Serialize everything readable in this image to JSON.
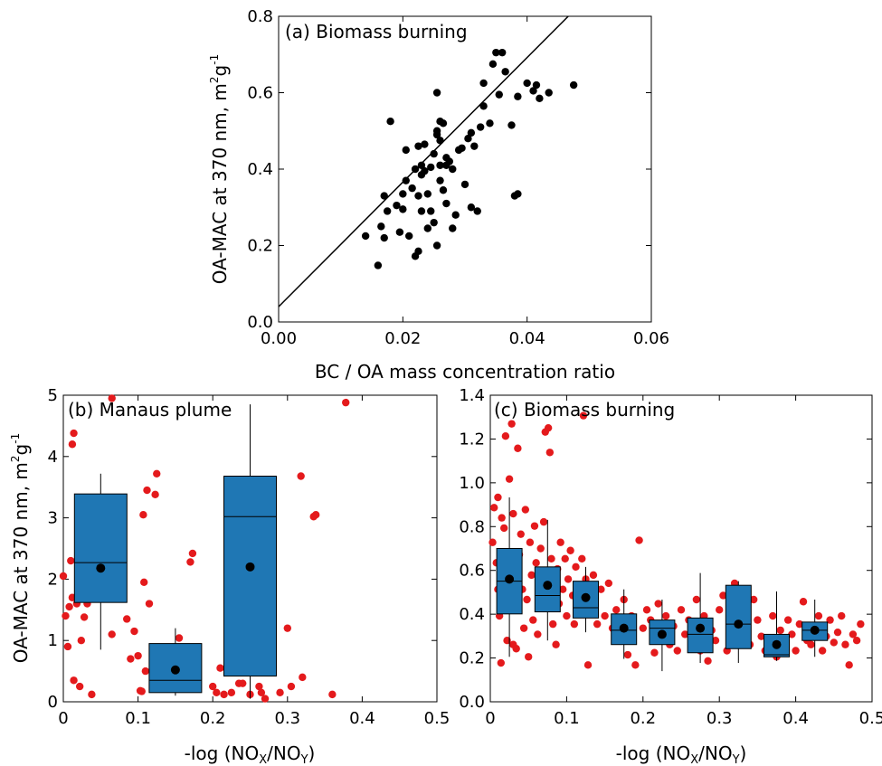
{
  "figure": {
    "panel_a": {
      "title": "(a) Biomass burning",
      "ylabel_main": "OA-MAC at 370 nm, m",
      "ylabel_sup1": "2",
      "ylabel_mid": "g",
      "ylabel_sup2": "-1",
      "xlabel": "BC / OA mass concentration ratio"
    },
    "panel_b": {
      "title": "(b) Manaus plume",
      "ylabel_main": "OA-MAC at 370 nm, m",
      "ylabel_sup1": "2",
      "ylabel_mid": "g",
      "ylabel_sup2": "-1",
      "xlabel_pre": "-log (NO",
      "xlabel_sub1": "X",
      "xlabel_mid": "/NO",
      "xlabel_sub2": "Y",
      "xlabel_post": ")"
    },
    "panel_c": {
      "title": "(c) Biomass burning",
      "xlabel_pre": "-log (NO",
      "xlabel_sub1": "X",
      "xlabel_mid": "/NO",
      "xlabel_sub2": "Y",
      "xlabel_post": ")"
    }
  },
  "colors": {
    "scatter_a": "#000000",
    "red_points": "#e41a1c",
    "box_fill": "#1f77b4",
    "mean_marker": "#000000"
  },
  "chart_data": [
    {
      "type": "scatter",
      "panel": "a",
      "title": "(a) Biomass burning",
      "xlabel": "BC / OA mass concentration ratio",
      "ylabel": "OA-MAC at 370 nm, m2g-1",
      "xlim": [
        0.0,
        0.06
      ],
      "ylim": [
        0.0,
        0.8
      ],
      "xticks": [
        "0.00",
        "0.02",
        "0.04",
        "0.06"
      ],
      "yticks": [
        "0.0",
        "0.2",
        "0.4",
        "0.6",
        "0.8"
      ],
      "fit_line": {
        "intercept": 0.04,
        "slope": 16.3
      },
      "points": [
        [
          0.014,
          0.225
        ],
        [
          0.016,
          0.148
        ],
        [
          0.0165,
          0.25
        ],
        [
          0.017,
          0.22
        ],
        [
          0.017,
          0.33
        ],
        [
          0.0175,
          0.29
        ],
        [
          0.018,
          0.525
        ],
        [
          0.019,
          0.305
        ],
        [
          0.0195,
          0.235
        ],
        [
          0.02,
          0.335
        ],
        [
          0.02,
          0.295
        ],
        [
          0.0205,
          0.37
        ],
        [
          0.0205,
          0.45
        ],
        [
          0.021,
          0.225
        ],
        [
          0.0215,
          0.35
        ],
        [
          0.022,
          0.172
        ],
        [
          0.022,
          0.4
        ],
        [
          0.0225,
          0.185
        ],
        [
          0.0225,
          0.33
        ],
        [
          0.0225,
          0.46
        ],
        [
          0.023,
          0.385
        ],
        [
          0.023,
          0.41
        ],
        [
          0.023,
          0.29
        ],
        [
          0.0235,
          0.465
        ],
        [
          0.0235,
          0.395
        ],
        [
          0.024,
          0.335
        ],
        [
          0.024,
          0.245
        ],
        [
          0.0245,
          0.29
        ],
        [
          0.0245,
          0.405
        ],
        [
          0.025,
          0.44
        ],
        [
          0.025,
          0.26
        ],
        [
          0.0255,
          0.2
        ],
        [
          0.0255,
          0.6
        ],
        [
          0.0255,
          0.5
        ],
        [
          0.0255,
          0.49
        ],
        [
          0.026,
          0.525
        ],
        [
          0.026,
          0.37
        ],
        [
          0.026,
          0.475
        ],
        [
          0.026,
          0.41
        ],
        [
          0.0265,
          0.52
        ],
        [
          0.0265,
          0.345
        ],
        [
          0.027,
          0.41
        ],
        [
          0.027,
          0.31
        ],
        [
          0.027,
          0.43
        ],
        [
          0.0275,
          0.42
        ],
        [
          0.028,
          0.245
        ],
        [
          0.028,
          0.4
        ],
        [
          0.0285,
          0.28
        ],
        [
          0.029,
          0.45
        ],
        [
          0.0295,
          0.455
        ],
        [
          0.03,
          0.36
        ],
        [
          0.0305,
          0.48
        ],
        [
          0.031,
          0.3
        ],
        [
          0.031,
          0.495
        ],
        [
          0.0315,
          0.46
        ],
        [
          0.032,
          0.29
        ],
        [
          0.0325,
          0.51
        ],
        [
          0.033,
          0.625
        ],
        [
          0.033,
          0.565
        ],
        [
          0.034,
          0.52
        ],
        [
          0.0345,
          0.675
        ],
        [
          0.035,
          0.705
        ],
        [
          0.0355,
          0.595
        ],
        [
          0.036,
          0.705
        ],
        [
          0.0365,
          0.655
        ],
        [
          0.0375,
          0.515
        ],
        [
          0.038,
          0.33
        ],
        [
          0.0385,
          0.59
        ],
        [
          0.0385,
          0.335
        ],
        [
          0.04,
          0.625
        ],
        [
          0.041,
          0.605
        ],
        [
          0.0415,
          0.62
        ],
        [
          0.042,
          0.585
        ],
        [
          0.0435,
          0.6
        ],
        [
          0.0475,
          0.62
        ]
      ]
    },
    {
      "type": "box",
      "panel": "b",
      "title": "(b) Manaus plume",
      "xlabel": "-log (NOX/NOY)",
      "ylabel": "OA-MAC at 370 nm, m2g-1",
      "xlim": [
        0,
        0.5
      ],
      "ylim": [
        0,
        5
      ],
      "xticks": [
        "0",
        "0.1",
        "0.2",
        "0.3",
        "0.4",
        "0.5"
      ],
      "yticks": [
        "0",
        "1",
        "2",
        "3",
        "4",
        "5"
      ],
      "boxes": [
        {
          "x": 0.05,
          "whisker_low": 0.85,
          "q1": 1.62,
          "median": 2.27,
          "q3": 3.39,
          "whisker_high": 3.72,
          "mean": 2.18
        },
        {
          "x": 0.15,
          "whisker_low": 0.1,
          "q1": 0.15,
          "median": 0.35,
          "q3": 0.95,
          "whisker_high": 1.2,
          "mean": 0.52
        },
        {
          "x": 0.25,
          "whisker_low": 0.05,
          "q1": 0.42,
          "median": 3.02,
          "q3": 3.68,
          "whisker_high": 4.85,
          "mean": 2.2
        }
      ],
      "points": [
        [
          0.0,
          2.05
        ],
        [
          0.003,
          1.4
        ],
        [
          0.006,
          0.9
        ],
        [
          0.008,
          1.55
        ],
        [
          0.01,
          2.3
        ],
        [
          0.012,
          4.2
        ],
        [
          0.012,
          1.7
        ],
        [
          0.014,
          4.38
        ],
        [
          0.014,
          0.35
        ],
        [
          0.018,
          1.6
        ],
        [
          0.02,
          1.8
        ],
        [
          0.022,
          0.25
        ],
        [
          0.024,
          1.0
        ],
        [
          0.028,
          1.38
        ],
        [
          0.032,
          1.6
        ],
        [
          0.038,
          0.12
        ],
        [
          0.065,
          4.95
        ],
        [
          0.065,
          1.1
        ],
        [
          0.078,
          1.9
        ],
        [
          0.085,
          1.35
        ],
        [
          0.09,
          0.7
        ],
        [
          0.095,
          1.15
        ],
        [
          0.1,
          0.75
        ],
        [
          0.103,
          0.18
        ],
        [
          0.105,
          0.17
        ],
        [
          0.107,
          3.05
        ],
        [
          0.108,
          1.95
        ],
        [
          0.11,
          0.5
        ],
        [
          0.112,
          3.45
        ],
        [
          0.115,
          1.6
        ],
        [
          0.123,
          3.38
        ],
        [
          0.125,
          3.72
        ],
        [
          0.155,
          1.04
        ],
        [
          0.165,
          0.68
        ],
        [
          0.17,
          2.28
        ],
        [
          0.173,
          2.42
        ],
        [
          0.2,
          0.25
        ],
        [
          0.205,
          0.15
        ],
        [
          0.21,
          0.55
        ],
        [
          0.215,
          0.12
        ],
        [
          0.225,
          0.15
        ],
        [
          0.235,
          0.3
        ],
        [
          0.24,
          0.3
        ],
        [
          0.25,
          0.12
        ],
        [
          0.262,
          0.25
        ],
        [
          0.265,
          0.15
        ],
        [
          0.27,
          0.05
        ],
        [
          0.29,
          0.15
        ],
        [
          0.3,
          1.2
        ],
        [
          0.305,
          0.25
        ],
        [
          0.318,
          3.68
        ],
        [
          0.32,
          0.4
        ],
        [
          0.335,
          3.02
        ],
        [
          0.338,
          3.05
        ],
        [
          0.36,
          0.12
        ],
        [
          0.378,
          4.88
        ]
      ]
    },
    {
      "type": "box",
      "panel": "c",
      "title": "(c) Biomass burning",
      "xlabel": "-log (NOX/NOY)",
      "xlim": [
        0,
        0.5
      ],
      "ylim": [
        0,
        1.5
      ],
      "xticks": [
        "0",
        "0.1",
        "0.2",
        "0.3",
        "0.4",
        "0.5"
      ],
      "yticks": [
        "0.0",
        "0.2",
        "0.4",
        "0.6",
        "0.8",
        "1.0",
        "1.2",
        "1.4"
      ],
      "boxes": [
        {
          "x": 0.025,
          "whisker_low": 0.22,
          "q1": 0.43,
          "median": 0.59,
          "q3": 0.75,
          "whisker_high": 1.0,
          "mean": 0.6
        },
        {
          "x": 0.075,
          "whisker_low": 0.3,
          "q1": 0.44,
          "median": 0.52,
          "q3": 0.66,
          "whisker_high": 0.89,
          "mean": 0.57
        },
        {
          "x": 0.125,
          "whisker_low": 0.34,
          "q1": 0.41,
          "median": 0.46,
          "q3": 0.59,
          "whisker_high": 0.66,
          "mean": 0.51
        },
        {
          "x": 0.175,
          "whisker_low": 0.21,
          "q1": 0.28,
          "median": 0.35,
          "q3": 0.43,
          "whisker_high": 0.55,
          "mean": 0.36
        },
        {
          "x": 0.225,
          "whisker_low": 0.15,
          "q1": 0.28,
          "median": 0.36,
          "q3": 0.4,
          "whisker_high": 0.5,
          "mean": 0.33
        },
        {
          "x": 0.275,
          "whisker_low": 0.19,
          "q1": 0.24,
          "median": 0.33,
          "q3": 0.41,
          "whisker_high": 0.63,
          "mean": 0.36
        },
        {
          "x": 0.325,
          "whisker_low": 0.19,
          "q1": 0.26,
          "median": 0.38,
          "q3": 0.57,
          "whisker_high": 0.59,
          "mean": 0.38
        },
        {
          "x": 0.375,
          "whisker_low": 0.2,
          "q1": 0.22,
          "median": 0.23,
          "q3": 0.33,
          "whisker_high": 0.54,
          "mean": 0.28
        },
        {
          "x": 0.425,
          "whisker_low": 0.22,
          "q1": 0.3,
          "median": 0.35,
          "q3": 0.39,
          "whisker_high": 0.5,
          "mean": 0.35
        }
      ],
      "points": [
        [
          0.003,
          0.78
        ],
        [
          0.005,
          0.95
        ],
        [
          0.008,
          0.68
        ],
        [
          0.01,
          1.0
        ],
        [
          0.01,
          0.55
        ],
        [
          0.012,
          0.42
        ],
        [
          0.014,
          0.19
        ],
        [
          0.015,
          0.9
        ],
        [
          0.018,
          0.85
        ],
        [
          0.02,
          1.3
        ],
        [
          0.02,
          0.72
        ],
        [
          0.022,
          0.3
        ],
        [
          0.024,
          0.62
        ],
        [
          0.025,
          1.09
        ],
        [
          0.026,
          0.48
        ],
        [
          0.028,
          1.36
        ],
        [
          0.03,
          0.92
        ],
        [
          0.03,
          0.28
        ],
        [
          0.032,
          0.65
        ],
        [
          0.034,
          0.26
        ],
        [
          0.036,
          1.24
        ],
        [
          0.038,
          0.72
        ],
        [
          0.04,
          0.82
        ],
        [
          0.042,
          0.55
        ],
        [
          0.044,
          0.36
        ],
        [
          0.046,
          0.94
        ],
        [
          0.048,
          0.5
        ],
        [
          0.05,
          0.22
        ],
        [
          0.052,
          0.78
        ],
        [
          0.054,
          0.62
        ],
        [
          0.056,
          0.4
        ],
        [
          0.058,
          0.86
        ],
        [
          0.06,
          0.68
        ],
        [
          0.062,
          0.33
        ],
        [
          0.064,
          0.56
        ],
        [
          0.066,
          0.75
        ],
        [
          0.068,
          0.46
        ],
        [
          0.07,
          0.88
        ],
        [
          0.072,
          1.32
        ],
        [
          0.074,
          0.62
        ],
        [
          0.076,
          1.34
        ],
        [
          0.078,
          1.22
        ],
        [
          0.08,
          0.7
        ],
        [
          0.082,
          0.38
        ],
        [
          0.084,
          0.58
        ],
        [
          0.086,
          0.28
        ],
        [
          0.088,
          0.65
        ],
        [
          0.09,
          0.48
        ],
        [
          0.092,
          0.78
        ],
        [
          0.095,
          0.55
        ],
        [
          0.098,
          0.7
        ],
        [
          0.1,
          0.42
        ],
        [
          0.102,
          0.6
        ],
        [
          0.105,
          0.74
        ],
        [
          0.108,
          0.52
        ],
        [
          0.11,
          0.38
        ],
        [
          0.112,
          0.66
        ],
        [
          0.115,
          0.55
        ],
        [
          0.118,
          0.45
        ],
        [
          0.12,
          0.7
        ],
        [
          0.122,
          1.4
        ],
        [
          0.125,
          0.6
        ],
        [
          0.128,
          0.18
        ],
        [
          0.13,
          0.5
        ],
        [
          0.135,
          0.62
        ],
        [
          0.14,
          0.38
        ],
        [
          0.145,
          0.55
        ],
        [
          0.15,
          0.42
        ],
        [
          0.155,
          0.58
        ],
        [
          0.16,
          0.36
        ],
        [
          0.165,
          0.45
        ],
        [
          0.17,
          0.32
        ],
        [
          0.175,
          0.5
        ],
        [
          0.18,
          0.23
        ],
        [
          0.185,
          0.42
        ],
        [
          0.19,
          0.18
        ],
        [
          0.195,
          0.79
        ],
        [
          0.2,
          0.36
        ],
        [
          0.205,
          0.45
        ],
        [
          0.21,
          0.4
        ],
        [
          0.215,
          0.24
        ],
        [
          0.22,
          0.48
        ],
        [
          0.225,
          0.3
        ],
        [
          0.23,
          0.42
        ],
        [
          0.235,
          0.28
        ],
        [
          0.24,
          0.37
        ],
        [
          0.245,
          0.25
        ],
        [
          0.25,
          0.45
        ],
        [
          0.255,
          0.33
        ],
        [
          0.26,
          0.4
        ],
        [
          0.265,
          0.27
        ],
        [
          0.27,
          0.5
        ],
        [
          0.275,
          0.25
        ],
        [
          0.28,
          0.42
        ],
        [
          0.285,
          0.2
        ],
        [
          0.29,
          0.35
        ],
        [
          0.295,
          0.3
        ],
        [
          0.3,
          0.45
        ],
        [
          0.305,
          0.52
        ],
        [
          0.31,
          0.25
        ],
        [
          0.315,
          0.4
        ],
        [
          0.32,
          0.58
        ],
        [
          0.325,
          0.3
        ],
        [
          0.33,
          0.44
        ],
        [
          0.335,
          0.35
        ],
        [
          0.34,
          0.28
        ],
        [
          0.345,
          0.5
        ],
        [
          0.35,
          0.4
        ],
        [
          0.355,
          0.32
        ],
        [
          0.36,
          0.25
        ],
        [
          0.365,
          0.3
        ],
        [
          0.37,
          0.42
        ],
        [
          0.375,
          0.22
        ],
        [
          0.38,
          0.35
        ],
        [
          0.385,
          0.28
        ],
        [
          0.39,
          0.4
        ],
        [
          0.395,
          0.33
        ],
        [
          0.4,
          0.25
        ],
        [
          0.405,
          0.38
        ],
        [
          0.41,
          0.49
        ],
        [
          0.415,
          0.3
        ],
        [
          0.42,
          0.28
        ],
        [
          0.425,
          0.36
        ],
        [
          0.43,
          0.42
        ],
        [
          0.435,
          0.25
        ],
        [
          0.44,
          0.32
        ],
        [
          0.445,
          0.4
        ],
        [
          0.45,
          0.29
        ],
        [
          0.455,
          0.34
        ],
        [
          0.46,
          0.42
        ],
        [
          0.465,
          0.28
        ],
        [
          0.47,
          0.18
        ],
        [
          0.475,
          0.33
        ],
        [
          0.48,
          0.3
        ],
        [
          0.485,
          0.38
        ]
      ]
    }
  ]
}
